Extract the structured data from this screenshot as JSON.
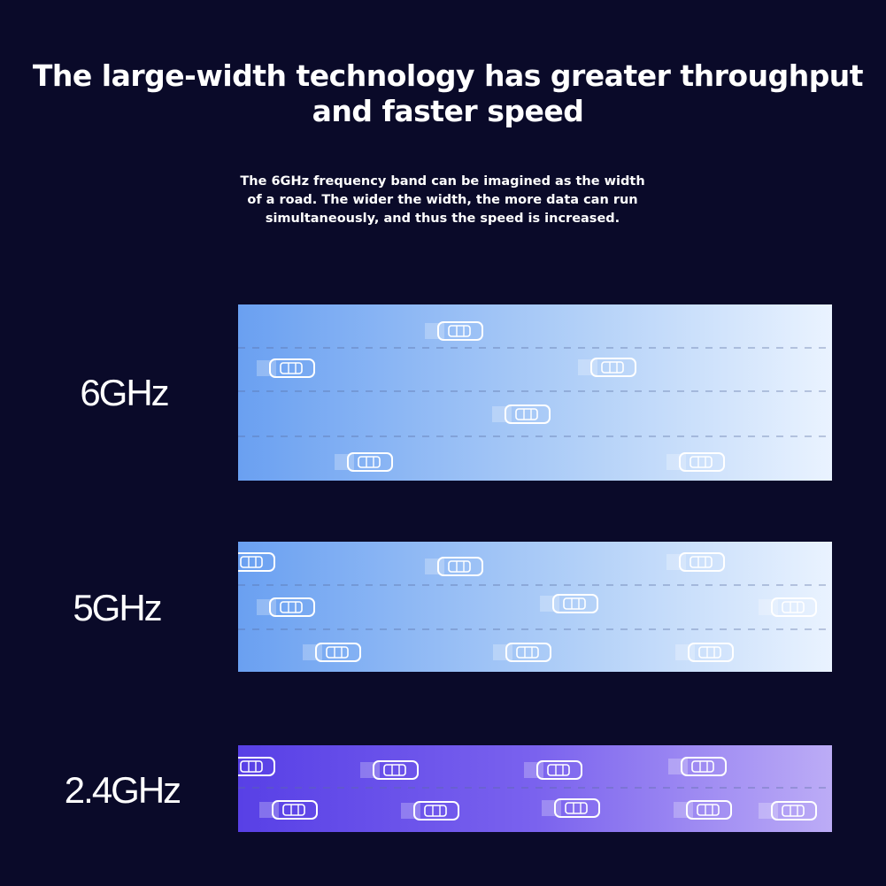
{
  "header": {
    "title_lines": [
      "The large-width technology has greater throughput",
      "and faster speed"
    ],
    "subtitle_lines": [
      "The 6GHz frequency band can be imagined as the width",
      "of a road. The wider the width, the more data can run",
      "simultaneously, and thus the speed is increased."
    ]
  },
  "bands": [
    {
      "label": "6GHz"
    },
    {
      "label": "5GHz"
    },
    {
      "label": "2.4GHz"
    }
  ]
}
